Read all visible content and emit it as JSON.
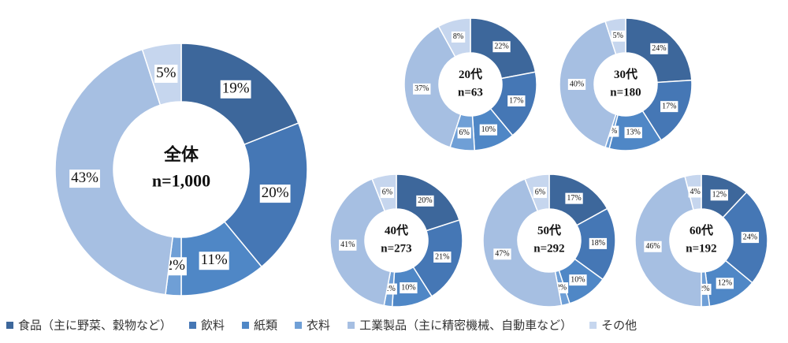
{
  "legend": {
    "labels": [
      "食品（主に野菜、穀物など）",
      "飲料",
      "紙類",
      "衣料",
      "工業製品（主に精密機械、自動車など）",
      "その他"
    ],
    "colors": [
      "#3d679b",
      "#4577b5",
      "#4f87c6",
      "#6f9fd6",
      "#a6bfe2",
      "#c6d6ee"
    ]
  },
  "chart_data": [
    {
      "type": "pie",
      "title": "全体",
      "subtitle": "n=1,000",
      "values": [
        19,
        20,
        11,
        2,
        43,
        5
      ],
      "value_labels": [
        "19%",
        "20%",
        "11%",
        "2%",
        "43%",
        "5%"
      ]
    },
    {
      "type": "pie",
      "title": "20代",
      "subtitle": "n=63",
      "values": [
        22,
        17,
        10,
        6,
        37,
        8
      ],
      "value_labels": [
        "22%",
        "17%",
        "10%",
        "6%",
        "37%",
        "8%"
      ]
    },
    {
      "type": "pie",
      "title": "30代",
      "subtitle": "n=180",
      "values": [
        24,
        17,
        13,
        1,
        40,
        5
      ],
      "value_labels": [
        "24%",
        "17%",
        "13%",
        "1%",
        "40%",
        "5%"
      ]
    },
    {
      "type": "pie",
      "title": "40代",
      "subtitle": "n=273",
      "values": [
        20,
        21,
        10,
        2,
        41,
        6
      ],
      "value_labels": [
        "20%",
        "21%",
        "10%",
        "2%",
        "41%",
        "6%"
      ]
    },
    {
      "type": "pie",
      "title": "50代",
      "subtitle": "n=292",
      "values": [
        17,
        18,
        10,
        2,
        47,
        6
      ],
      "value_labels": [
        "17%",
        "18%",
        "10%",
        "2%",
        "47%",
        "6%"
      ]
    },
    {
      "type": "pie",
      "title": "60代",
      "subtitle": "n=192",
      "values": [
        12,
        24,
        12,
        2,
        46,
        4
      ],
      "value_labels": [
        "12%",
        "24%",
        "12%",
        "2%",
        "46%",
        "4%"
      ]
    }
  ]
}
